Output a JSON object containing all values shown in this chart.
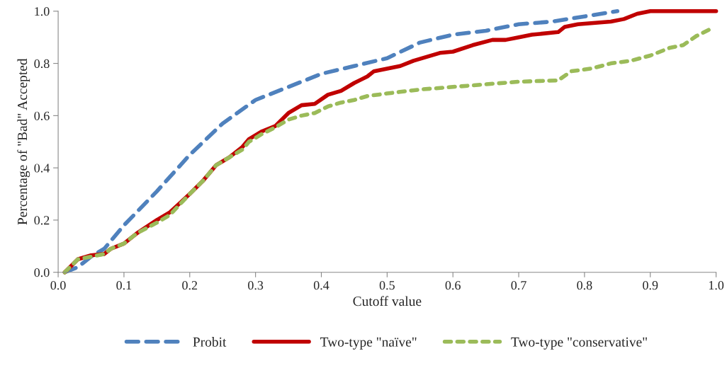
{
  "chart_data": {
    "type": "line",
    "xlabel": "Cutoff value",
    "ylabel": "Percentage of \"Bad\" Accepted",
    "xlim": [
      0,
      1
    ],
    "ylim": [
      0,
      1
    ],
    "xticks": [
      {
        "value": 0,
        "label": "0.0"
      },
      {
        "value": 0.1,
        "label": "0.1"
      },
      {
        "value": 0.2,
        "label": "0.2"
      },
      {
        "value": 0.3,
        "label": "0.3"
      },
      {
        "value": 0.4,
        "label": "0.4"
      },
      {
        "value": 0.5,
        "label": "0.5"
      },
      {
        "value": 0.6,
        "label": "0.6"
      },
      {
        "value": 0.7,
        "label": "0.7"
      },
      {
        "value": 0.8,
        "label": "0.8"
      },
      {
        "value": 0.9,
        "label": "0.9"
      },
      {
        "value": 1,
        "label": "1.0"
      }
    ],
    "yticks": [
      {
        "value": 0,
        "label": "0.0"
      },
      {
        "value": 0.2,
        "label": "0.2"
      },
      {
        "value": 0.4,
        "label": "0.4"
      },
      {
        "value": 0.6,
        "label": "0.6"
      },
      {
        "value": 0.8,
        "label": "0.8"
      },
      {
        "value": 1,
        "label": "1.0"
      }
    ],
    "grid": false,
    "legend": "bottom",
    "marker": "none",
    "series": [
      {
        "name": "Probit",
        "color": "#4f81bd",
        "line_style": "dashed",
        "x": [
          0.01,
          0.03,
          0.05,
          0.07,
          0.1,
          0.15,
          0.2,
          0.25,
          0.3,
          0.35,
          0.4,
          0.45,
          0.5,
          0.55,
          0.6,
          0.65,
          0.7,
          0.75,
          0.8,
          0.85
        ],
        "values": [
          0,
          0.02,
          0.06,
          0.09,
          0.18,
          0.31,
          0.45,
          0.57,
          0.66,
          0.71,
          0.76,
          0.79,
          0.82,
          0.88,
          0.91,
          0.925,
          0.95,
          0.96,
          0.98,
          1.0
        ]
      },
      {
        "name": "Two-type \"naïve\"",
        "color": "#c00000",
        "line_style": "solid",
        "x": [
          0.01,
          0.03,
          0.05,
          0.07,
          0.08,
          0.1,
          0.12,
          0.15,
          0.17,
          0.2,
          0.22,
          0.24,
          0.26,
          0.28,
          0.29,
          0.31,
          0.33,
          0.35,
          0.37,
          0.39,
          0.41,
          0.43,
          0.45,
          0.47,
          0.48,
          0.5,
          0.52,
          0.54,
          0.56,
          0.58,
          0.6,
          0.63,
          0.66,
          0.68,
          0.7,
          0.72,
          0.76,
          0.77,
          0.79,
          0.84,
          0.86,
          0.88,
          0.9,
          1.0
        ],
        "values": [
          0,
          0.05,
          0.065,
          0.07,
          0.09,
          0.11,
          0.15,
          0.2,
          0.23,
          0.3,
          0.35,
          0.41,
          0.44,
          0.48,
          0.51,
          0.54,
          0.56,
          0.61,
          0.64,
          0.645,
          0.68,
          0.695,
          0.725,
          0.75,
          0.77,
          0.78,
          0.79,
          0.81,
          0.825,
          0.84,
          0.845,
          0.87,
          0.89,
          0.89,
          0.9,
          0.91,
          0.92,
          0.94,
          0.95,
          0.96,
          0.97,
          0.99,
          1.0,
          1.0
        ]
      },
      {
        "name": "Two-type \"conservative\"",
        "color": "#9bbb59",
        "line_style": "dotted",
        "x": [
          0.01,
          0.03,
          0.05,
          0.07,
          0.08,
          0.1,
          0.12,
          0.15,
          0.17,
          0.2,
          0.22,
          0.24,
          0.26,
          0.28,
          0.29,
          0.31,
          0.33,
          0.35,
          0.37,
          0.39,
          0.41,
          0.43,
          0.45,
          0.47,
          0.5,
          0.55,
          0.6,
          0.65,
          0.7,
          0.76,
          0.78,
          0.81,
          0.84,
          0.87,
          0.9,
          0.93,
          0.95,
          0.97,
          0.99
        ],
        "values": [
          0,
          0.05,
          0.06,
          0.07,
          0.09,
          0.11,
          0.15,
          0.19,
          0.22,
          0.3,
          0.35,
          0.41,
          0.44,
          0.47,
          0.5,
          0.53,
          0.555,
          0.585,
          0.6,
          0.61,
          0.635,
          0.65,
          0.66,
          0.675,
          0.685,
          0.7,
          0.71,
          0.72,
          0.73,
          0.735,
          0.77,
          0.78,
          0.8,
          0.81,
          0.83,
          0.86,
          0.87,
          0.905,
          0.93
        ]
      }
    ]
  }
}
